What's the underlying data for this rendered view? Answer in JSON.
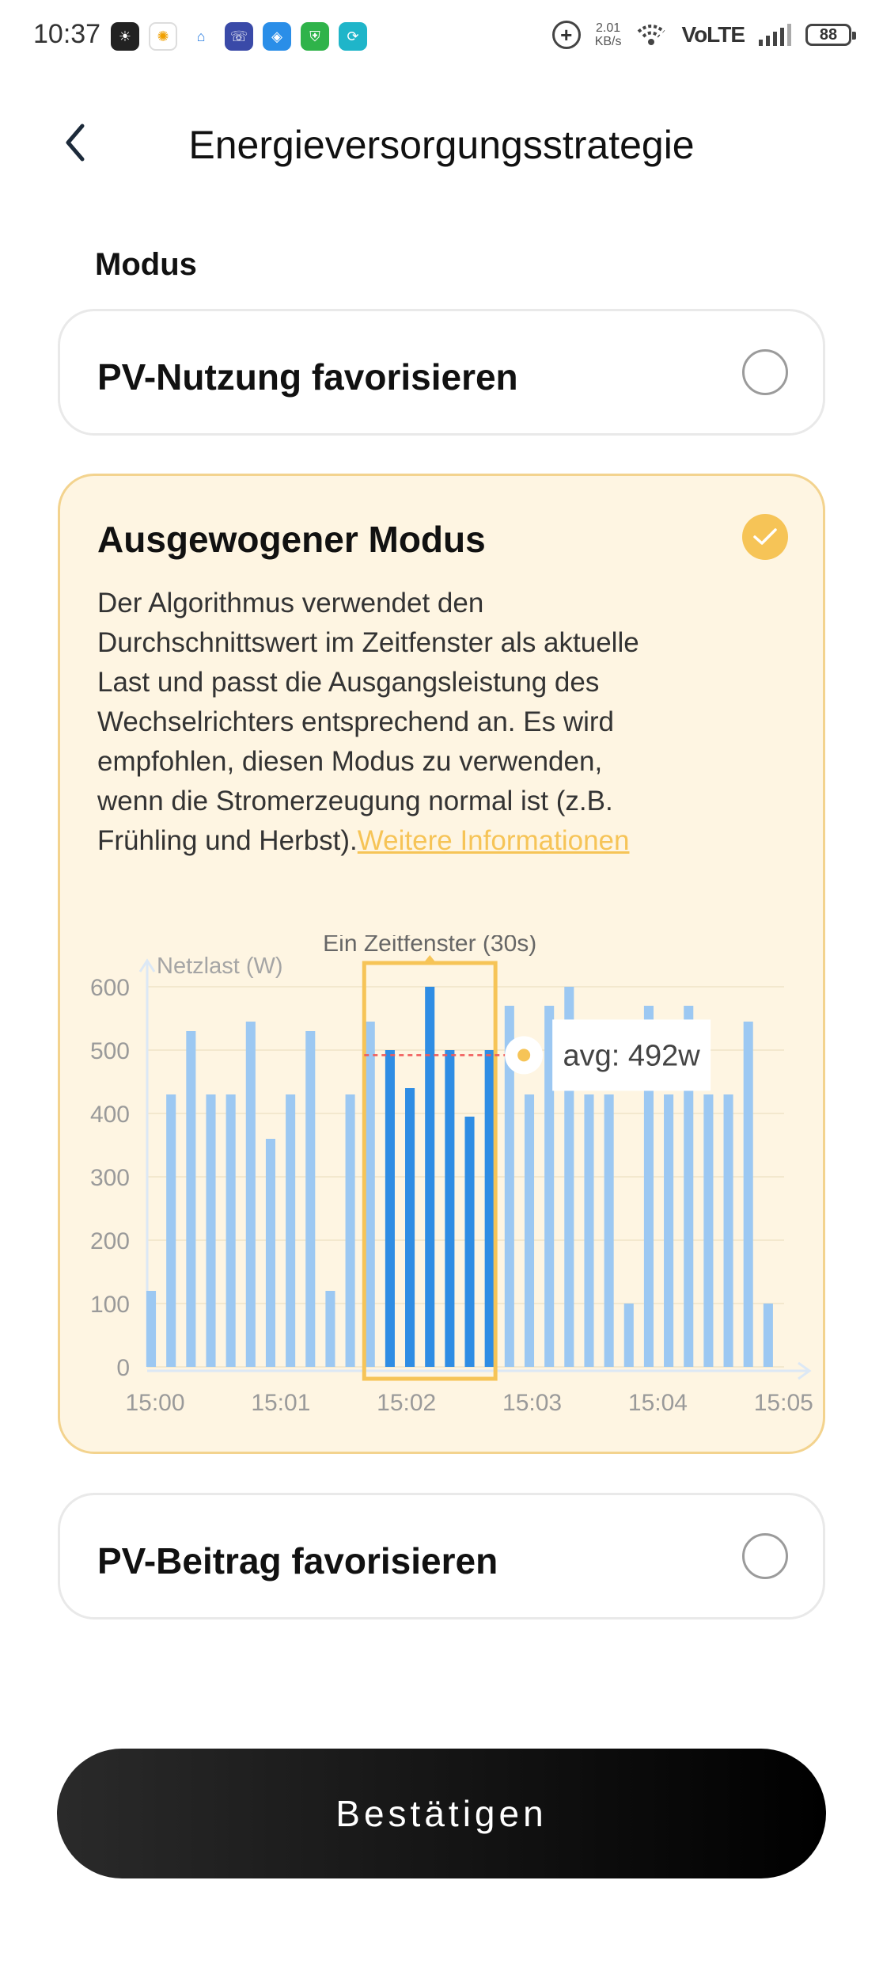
{
  "status_bar": {
    "time": "10:37",
    "net_speed_value": "2.01",
    "net_speed_unit": "KB/s",
    "network": "VoLTE",
    "battery": "88",
    "icons": [
      "sunlit-app-icon",
      "solar-app-icon",
      "home-app-icon",
      "phone-shield-icon",
      "shield-app-icon",
      "vpn-shield-icon",
      "sync-app-icon",
      "data-saver-icon",
      "wifi-icon",
      "signal-icon",
      "battery-icon"
    ]
  },
  "header": {
    "title": "Energieversorgungsstrategie"
  },
  "mode_section": {
    "label": "Modus"
  },
  "options": [
    {
      "title": "PV-Nutzung favorisieren",
      "selected": false
    },
    {
      "title": "Ausgewogener Modus",
      "selected": true,
      "description": "Der Algorithmus verwendet den Durchschnittswert im Zeitfenster als aktuelle Last und passt die Ausgangsleistung des Wechselrichters entsprechend an. Es wird empfohlen, diesen Modus zu verwenden, wenn die Stromerzeugung normal ist (z.B. Frühling und Herbst).",
      "link_text": "Weitere Informationen"
    },
    {
      "title": "PV-Beitrag favorisieren",
      "selected": false
    }
  ],
  "chart_data": {
    "type": "bar",
    "window_label": "Ein Zeitfenster (30s)",
    "ylabel": "Netzlast (W)",
    "ylim": [
      0,
      600
    ],
    "yticks": [
      "600",
      "500",
      "400",
      "300",
      "200",
      "100",
      "0"
    ],
    "xticks": [
      "15:00",
      "15:01",
      "15:02",
      "15:03",
      "15:04",
      "15:05"
    ],
    "values": [
      120,
      430,
      530,
      430,
      430,
      545,
      360,
      430,
      530,
      120,
      430,
      545,
      500,
      440,
      600,
      500,
      395,
      500,
      570,
      430,
      570,
      600,
      430,
      430,
      100,
      570,
      430,
      570,
      430,
      430,
      545,
      100
    ],
    "highlight_range": [
      12,
      17
    ],
    "avg_label": "avg:  492w",
    "avg_value": 492,
    "colors": {
      "bar": "#9cc8f2",
      "bar_highlight": "#2f8de4",
      "window": "#f6c457",
      "avg_line": "#f05a5a"
    }
  },
  "confirm_button": {
    "label": "Bestätigen"
  }
}
